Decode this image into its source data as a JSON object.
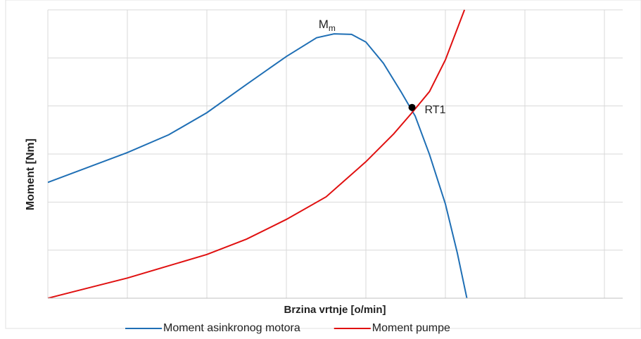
{
  "chart_data": {
    "type": "line",
    "xlabel": "Brzina vrtnje [o/min]",
    "ylabel": "Moment [Nm]",
    "xlim": [
      0,
      7.23
    ],
    "ylim": [
      0,
      6
    ],
    "xticks": [
      0,
      1,
      2,
      3,
      4,
      5,
      6,
      7
    ],
    "yticks": [
      0,
      1,
      2,
      3,
      4,
      5,
      6
    ],
    "grid": true,
    "legend": "bottom",
    "series": [
      {
        "name": "Moment asinkronog motora",
        "color": "#1f6fb5",
        "x": [
          0,
          1,
          1.52,
          2,
          2.5,
          3,
          3.38,
          3.6,
          3.82,
          4,
          4.22,
          4.44,
          4.62,
          4.8,
          5,
          5.15,
          5.27
        ],
        "values": [
          2.41,
          3.03,
          3.4,
          3.86,
          4.45,
          5.03,
          5.42,
          5.5,
          5.49,
          5.33,
          4.89,
          4.3,
          3.79,
          2.99,
          1.96,
          0.94,
          0
        ]
      },
      {
        "name": "Moment pumpe",
        "color": "#e01010",
        "x": [
          0,
          1,
          2,
          2.5,
          3,
          3.5,
          4,
          4.35,
          4.58,
          4.8,
          5,
          5.24
        ],
        "values": [
          0,
          0.42,
          0.91,
          1.23,
          1.64,
          2.11,
          2.84,
          3.42,
          3.86,
          4.3,
          4.96,
          6
        ]
      }
    ],
    "annotations": [
      {
        "text": "M",
        "subscript": "m"
      }
    ],
    "points": [
      {
        "label": "RT1",
        "x": 4.58,
        "y": 3.97
      }
    ]
  }
}
